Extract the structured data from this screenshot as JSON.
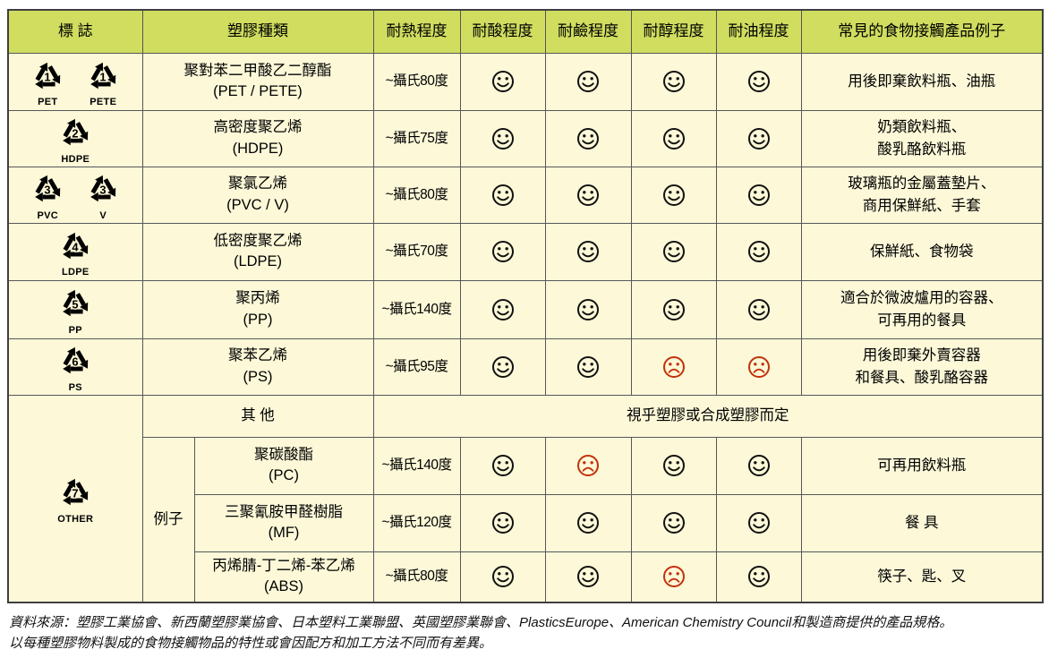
{
  "table": {
    "headers": {
      "mark": "標 誌",
      "plastic_type": "塑膠種類",
      "heat": "耐熱程度",
      "acid": "耐酸程度",
      "alkali": "耐鹼程度",
      "alcohol": "耐醇程度",
      "oil": "耐油程度",
      "examples": "常見的食物接觸產品例子"
    },
    "rows": [
      {
        "symbols": [
          {
            "number": "1",
            "code": "PET"
          },
          {
            "number": "1",
            "code": "PETE"
          }
        ],
        "type": "聚對苯二甲酸乙二醇酯",
        "abbr": "(PET / PETE)",
        "heat": "~攝氏80度",
        "acid": "good",
        "alkali": "good",
        "alcohol": "good",
        "oil": "good",
        "examples": [
          "用後即棄飲料瓶、油瓶"
        ]
      },
      {
        "symbols": [
          {
            "number": "2",
            "code": "HDPE"
          }
        ],
        "type": "高密度聚乙烯",
        "abbr": "(HDPE)",
        "heat": "~攝氏75度",
        "acid": "good",
        "alkali": "good",
        "alcohol": "good",
        "oil": "good",
        "examples": [
          "奶類飲料瓶、",
          "酸乳酪飲料瓶"
        ]
      },
      {
        "symbols": [
          {
            "number": "3",
            "code": "PVC"
          },
          {
            "number": "3",
            "code": "V"
          }
        ],
        "type": "聚氯乙烯",
        "abbr": "(PVC / V)",
        "heat": "~攝氏80度",
        "acid": "good",
        "alkali": "good",
        "alcohol": "good",
        "oil": "good",
        "examples": [
          "玻璃瓶的金屬蓋墊片、",
          "商用保鮮紙、手套"
        ]
      },
      {
        "symbols": [
          {
            "number": "4",
            "code": "LDPE"
          }
        ],
        "type": "低密度聚乙烯",
        "abbr": "(LDPE)",
        "heat": "~攝氏70度",
        "acid": "good",
        "alkali": "good",
        "alcohol": "good",
        "oil": "good",
        "examples": [
          "保鮮紙、食物袋"
        ]
      },
      {
        "symbols": [
          {
            "number": "5",
            "code": "PP"
          }
        ],
        "type": "聚丙烯",
        "abbr": "(PP)",
        "heat": "~攝氏140度",
        "acid": "good",
        "alkali": "good",
        "alcohol": "good",
        "oil": "good",
        "examples": [
          "適合於微波爐用的容器、",
          "可再用的餐具"
        ]
      },
      {
        "symbols": [
          {
            "number": "6",
            "code": "PS"
          }
        ],
        "type": "聚苯乙烯",
        "abbr": "(PS)",
        "heat": "~攝氏95度",
        "acid": "good",
        "alkali": "good",
        "alcohol": "bad",
        "oil": "bad",
        "examples": [
          "用後即棄外賣容器",
          "和餐具、酸乳酪容器"
        ]
      }
    ],
    "other": {
      "label": "其 他",
      "note": "視乎塑膠或合成塑膠而定",
      "symbol": {
        "number": "7",
        "code": "OTHER"
      },
      "examples_label": "例子",
      "rows": [
        {
          "type": "聚碳酸酯",
          "abbr": "(PC)",
          "heat": "~攝氏140度",
          "acid": "good",
          "alkali": "bad",
          "alcohol": "good",
          "oil": "good",
          "examples": [
            "可再用飲料瓶"
          ]
        },
        {
          "type": "三聚氰胺甲醛樹脂",
          "abbr": "(MF)",
          "heat": "~攝氏120度",
          "acid": "good",
          "alkali": "good",
          "alcohol": "good",
          "oil": "good",
          "examples": [
            "餐 具"
          ]
        },
        {
          "type": "丙烯腈-丁二烯-苯乙烯",
          "abbr": "(ABS)",
          "heat": "~攝氏80度",
          "acid": "good",
          "alkali": "good",
          "alcohol": "bad",
          "oil": "good",
          "examples": [
            "筷子、匙、叉"
          ]
        }
      ]
    }
  },
  "icons": {
    "good": "smiley-face-icon",
    "bad": "sad-face-icon",
    "mark": "recycling-triangle-icon"
  },
  "colors": {
    "header_bg": "#d0dd5f",
    "cell_bg": "#fcf8d8",
    "face_good": "#111111",
    "face_bad": "#c2310b",
    "border": "#56575a"
  },
  "footer": {
    "line1": "資料來源：塑膠工業協會、新西蘭塑膠業協會、日本塑料工業聯盟、英國塑膠業聯會、PlasticsEurope、American Chemistry Council和製造商提供的產品規格。",
    "line2": "以每種塑膠物料製成的食物接觸物品的特性或會因配方和加工方法不同而有差異。"
  }
}
